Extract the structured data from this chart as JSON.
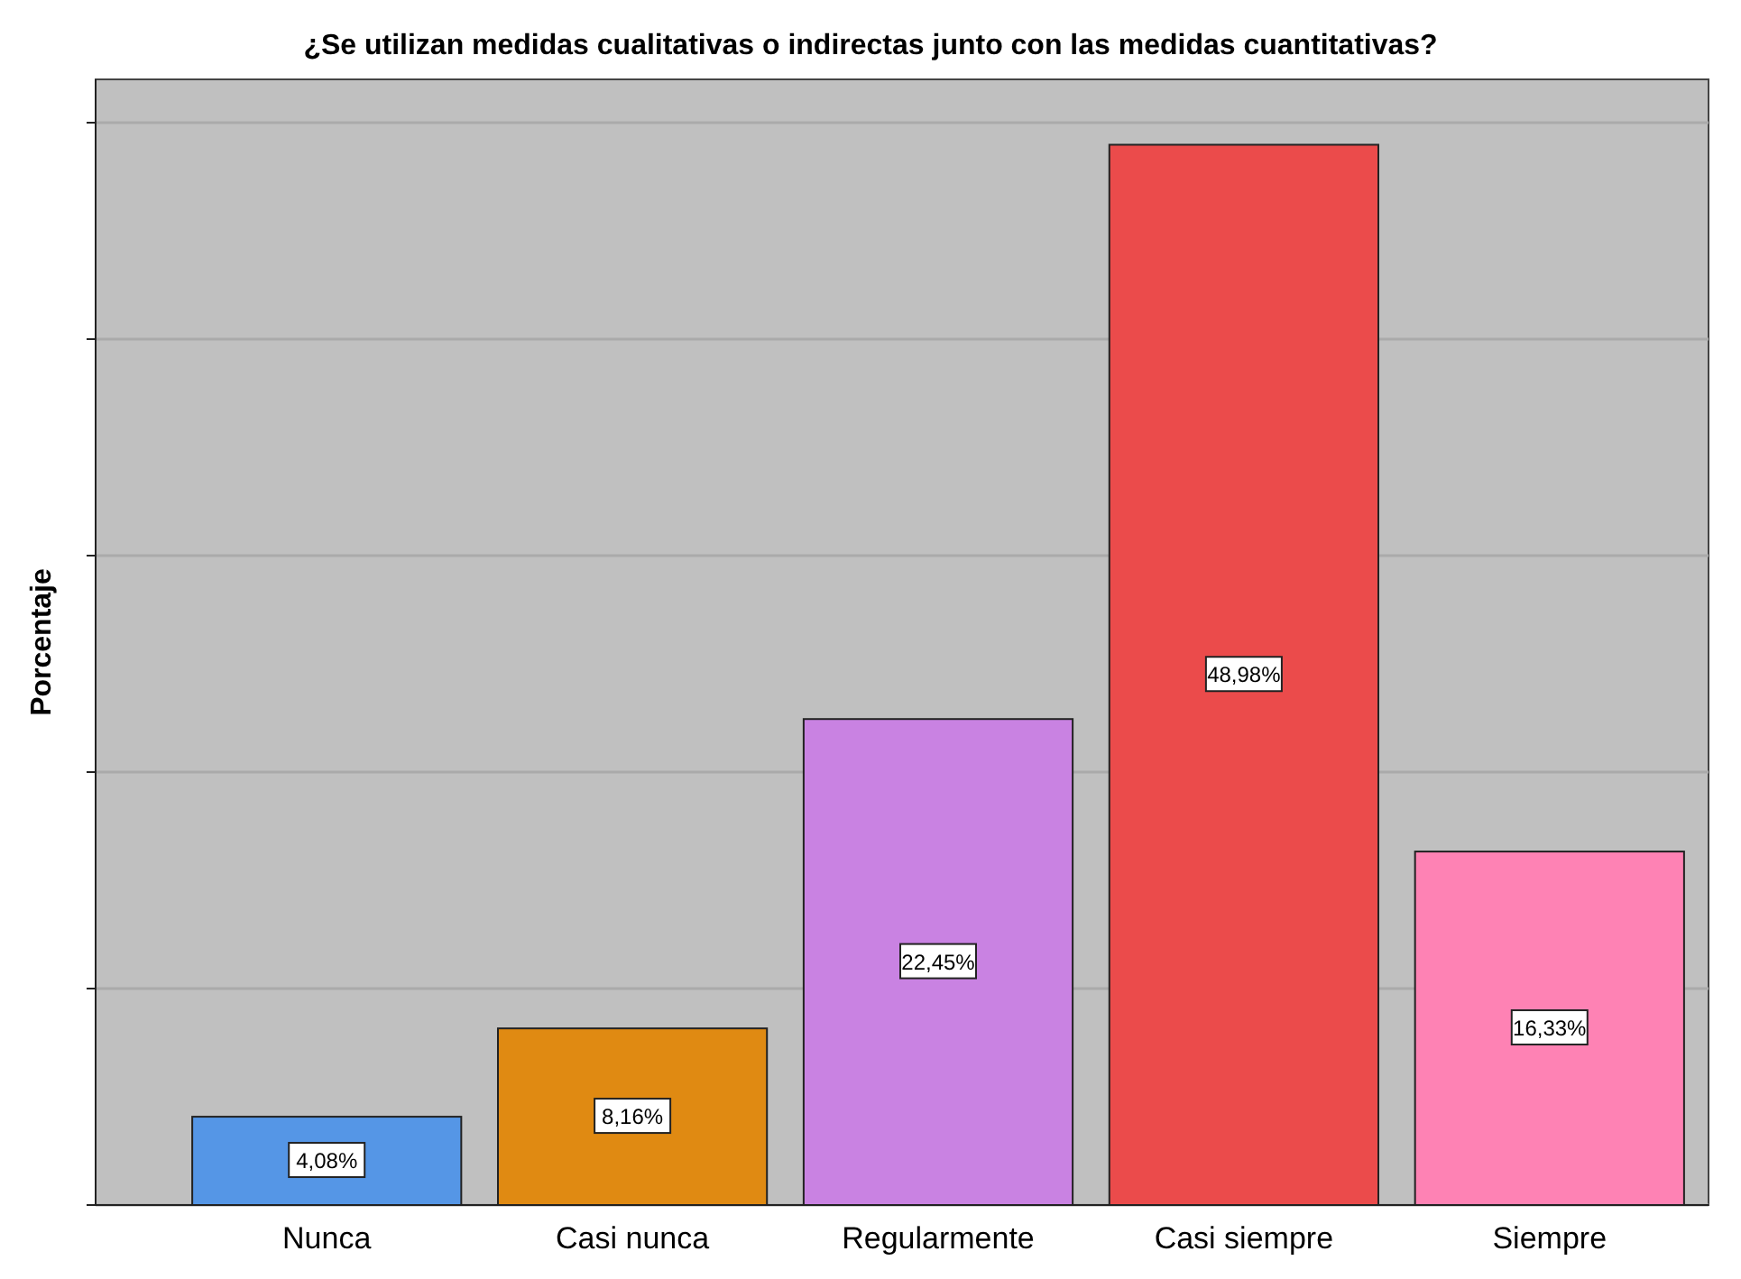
{
  "chart_data": {
    "type": "bar",
    "title": "¿Se utilizan medidas cualitativas o indirectas junto con las medidas cuantitativas?",
    "ylabel": "Porcentaje",
    "categories": [
      "Nunca",
      "Casi nunca",
      "Regularmente",
      "Casi siempre",
      "Siempre"
    ],
    "values": [
      4.08,
      8.16,
      22.45,
      48.98,
      16.33
    ],
    "value_labels": [
      "4,08%",
      "8,16%",
      "22,45%",
      "48,98%",
      "16,33%"
    ],
    "colors": [
      "#5596e6",
      "#e08a12",
      "#c982e2",
      "#eb4b4b",
      "#fe82b4"
    ],
    "ylim": [
      0,
      52
    ],
    "yticks": [
      {
        "value": 0,
        "label": null
      },
      {
        "value": 10,
        "label": null
      },
      {
        "value": 20,
        "label": null
      },
      {
        "value": 30,
        "label": null
      },
      {
        "value": 40,
        "label": null
      },
      {
        "value": 50,
        "label": null
      }
    ],
    "grid": "y"
  }
}
